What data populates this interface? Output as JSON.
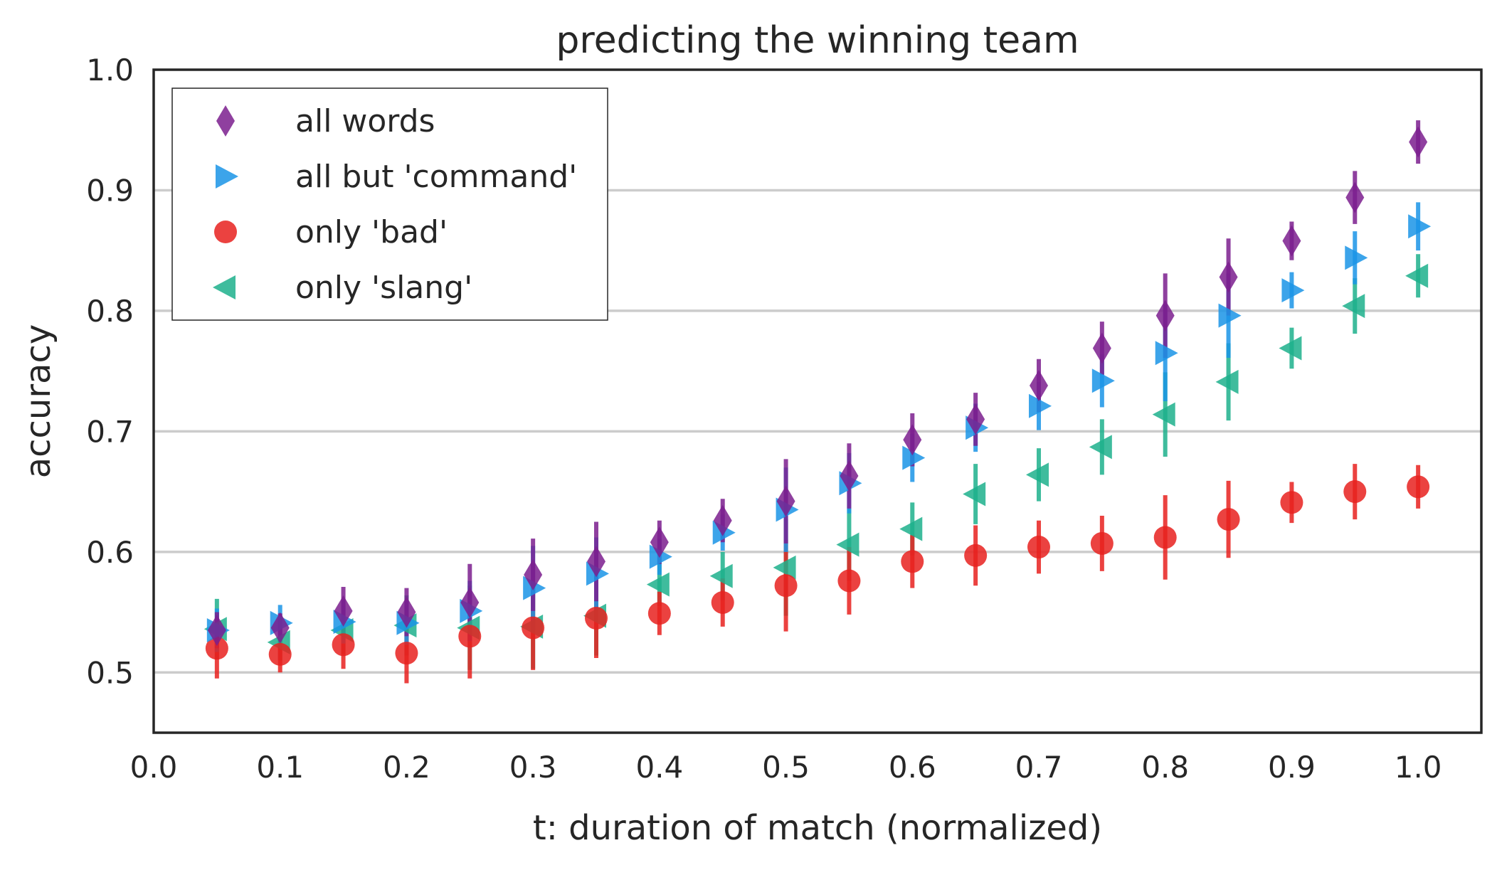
{
  "chart_data": {
    "type": "scatter",
    "title": "predicting the winning team",
    "xlabel": "t: duration of match (normalized)",
    "ylabel": "accuracy",
    "xlim": [
      0.0,
      1.05
    ],
    "ylim": [
      0.45,
      1.0
    ],
    "xticks": [
      "0.0",
      "0.1",
      "0.2",
      "0.3",
      "0.4",
      "0.5",
      "0.6",
      "0.7",
      "0.8",
      "0.9",
      "1.0"
    ],
    "yticks": [
      "0.5",
      "0.6",
      "0.7",
      "0.8",
      "0.9",
      "1.0"
    ],
    "grid": "horizontal",
    "legend_position": "top-left",
    "x": [
      0.05,
      0.1,
      0.15,
      0.2,
      0.25,
      0.3,
      0.35,
      0.4,
      0.45,
      0.5,
      0.55,
      0.6,
      0.65,
      0.7,
      0.75,
      0.8,
      0.85,
      0.9,
      0.95,
      1.0
    ],
    "series": [
      {
        "name": "all words",
        "marker": "diamond",
        "color": "#7B1F8E",
        "values": [
          0.535,
          0.537,
          0.551,
          0.55,
          0.558,
          0.581,
          0.592,
          0.608,
          0.626,
          0.642,
          0.663,
          0.693,
          0.71,
          0.738,
          0.769,
          0.796,
          0.828,
          0.858,
          0.894,
          0.94
        ],
        "errors": [
          0.015,
          0.012,
          0.02,
          0.02,
          0.032,
          0.03,
          0.033,
          0.018,
          0.018,
          0.035,
          0.027,
          0.022,
          0.022,
          0.022,
          0.022,
          0.035,
          0.032,
          0.016,
          0.022,
          0.018
        ]
      },
      {
        "name": "all but 'command'",
        "marker": "triangle-right",
        "color": "#1A94E6",
        "values": [
          0.535,
          0.541,
          0.542,
          0.541,
          0.551,
          0.57,
          0.582,
          0.596,
          0.616,
          0.635,
          0.657,
          0.678,
          0.703,
          0.721,
          0.742,
          0.765,
          0.796,
          0.817,
          0.844,
          0.87
        ],
        "errors": [
          0.018,
          0.015,
          0.018,
          0.018,
          0.025,
          0.035,
          0.03,
          0.015,
          0.015,
          0.035,
          0.025,
          0.02,
          0.02,
          0.02,
          0.022,
          0.04,
          0.035,
          0.015,
          0.022,
          0.02
        ]
      },
      {
        "name": "only 'bad'",
        "marker": "circle",
        "color": "#E8211E",
        "values": [
          0.52,
          0.515,
          0.523,
          0.516,
          0.53,
          0.537,
          0.545,
          0.549,
          0.558,
          0.572,
          0.576,
          0.592,
          0.597,
          0.604,
          0.607,
          0.612,
          0.627,
          0.641,
          0.65,
          0.654
        ],
        "errors": [
          0.025,
          0.015,
          0.02,
          0.025,
          0.035,
          0.035,
          0.033,
          0.018,
          0.02,
          0.038,
          0.028,
          0.022,
          0.025,
          0.022,
          0.023,
          0.035,
          0.032,
          0.017,
          0.023,
          0.018
        ]
      },
      {
        "name": "only 'slang'",
        "marker": "triangle-left",
        "color": "#1DB08C",
        "values": [
          0.536,
          0.525,
          0.535,
          0.539,
          0.537,
          0.538,
          0.547,
          0.573,
          0.58,
          0.587,
          0.606,
          0.619,
          0.648,
          0.664,
          0.687,
          0.714,
          0.741,
          0.769,
          0.804,
          0.829
        ],
        "errors": [
          0.025,
          0.015,
          0.02,
          0.025,
          0.035,
          0.035,
          0.033,
          0.018,
          0.02,
          0.04,
          0.03,
          0.022,
          0.025,
          0.022,
          0.023,
          0.035,
          0.032,
          0.017,
          0.023,
          0.018
        ]
      }
    ]
  }
}
